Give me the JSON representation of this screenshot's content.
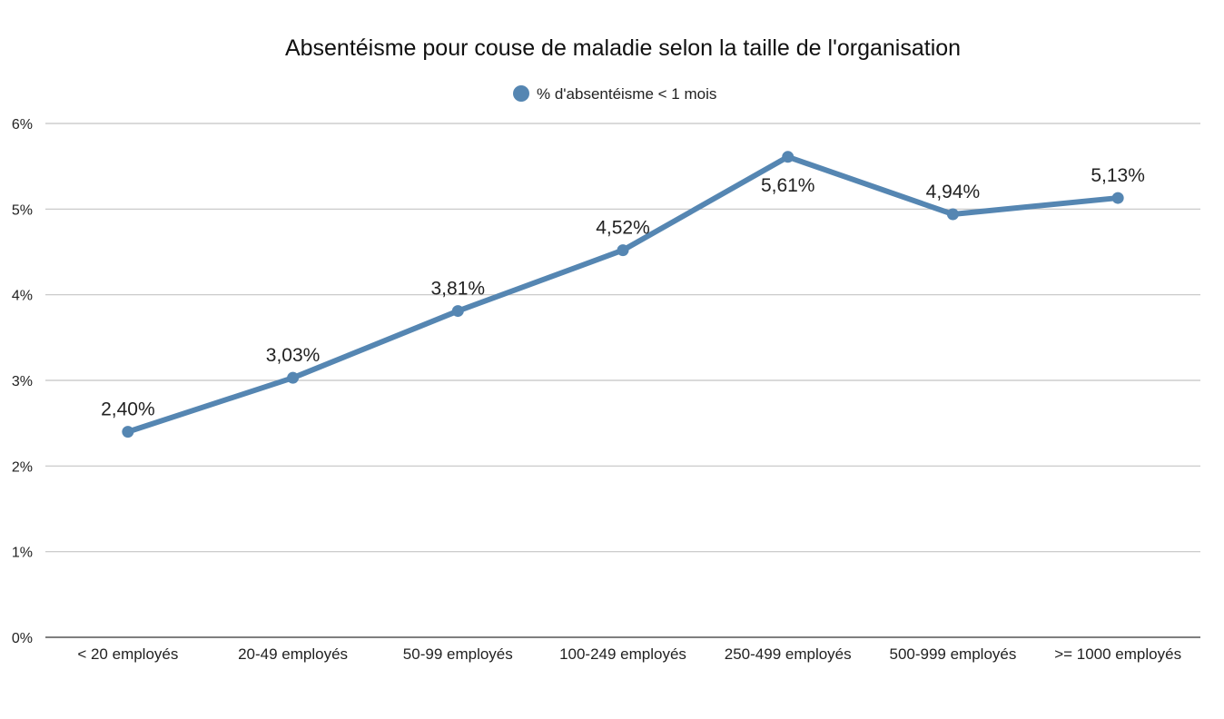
{
  "chart_data": {
    "type": "line",
    "title": "Absentéisme pour couse de maladie selon la taille de l'organisation",
    "categories": [
      "< 20 employés",
      "20-49 employés",
      "50-99 employés",
      "100-249 employés",
      "250-499 employés",
      "500-999 employés",
      ">= 1000 employés"
    ],
    "series": [
      {
        "name": "% d'absentéisme < 1 mois",
        "values": [
          2.4,
          3.03,
          3.81,
          4.52,
          5.61,
          4.94,
          5.13
        ],
        "labels": [
          "2,40%",
          "3,03%",
          "3,81%",
          "4,52%",
          "5,61%",
          "4,94%",
          "5,13%"
        ],
        "label_positions": [
          "above",
          "above",
          "above",
          "above",
          "below",
          "above",
          "above"
        ],
        "color": "#5586b2"
      }
    ],
    "ylim": [
      0,
      6
    ],
    "yticks": [
      0,
      1,
      2,
      3,
      4,
      5,
      6
    ],
    "ytick_labels": [
      "0%",
      "1%",
      "2%",
      "3%",
      "4%",
      "5%",
      "6%"
    ],
    "grid": true,
    "legend": "top-center"
  }
}
